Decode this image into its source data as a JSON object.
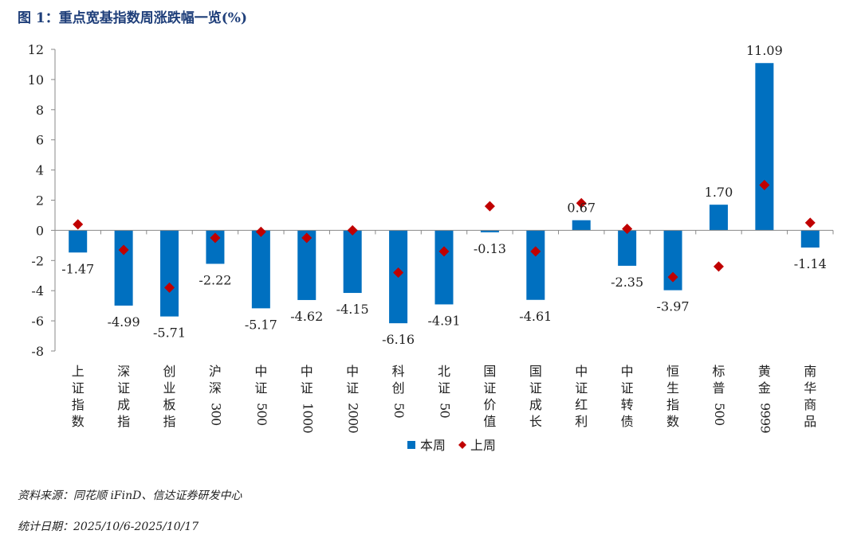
{
  "figure_title": "图 1：重点宽基指数周涨跌幅一览(%)",
  "source_note": "资料来源：同花顺 iFinD、信达证券研发中心",
  "date_note": "统计日期：2025/10/6-2025/10/17",
  "colors": {
    "bar": "#0070C0",
    "marker": "#C00000",
    "axis": "#888888",
    "title": "#1f3f7a"
  },
  "chart_data": {
    "type": "bar",
    "title": "重点宽基指数周涨跌幅一览(%)",
    "xlabel": "",
    "ylabel": "",
    "ylim": [
      -8,
      12
    ],
    "yticks": [
      "12",
      "10",
      "8",
      "6",
      "4",
      "2",
      "0",
      "-2",
      "-4",
      "-6",
      "-8"
    ],
    "categories": [
      "上证指数",
      "深证成指",
      "创业板指",
      "沪深300",
      "中证500",
      "中证1000",
      "中证2000",
      "科创50",
      "北证50",
      "国证价值",
      "国证成长",
      "中证红利",
      "中证转债",
      "恒生指数",
      "标普500",
      "黄金9999",
      "南华商品"
    ],
    "series": [
      {
        "name": "本周",
        "kind": "bar",
        "values": [
          -1.47,
          -4.99,
          -5.71,
          -2.22,
          -5.17,
          -4.62,
          -4.15,
          -6.16,
          -4.91,
          -0.13,
          -4.61,
          0.67,
          -2.35,
          -3.97,
          1.7,
          11.09,
          -1.14
        ],
        "labels": [
          "-1.47",
          "-4.99",
          "-5.71",
          "-2.22",
          "-5.17",
          "-4.62",
          "-4.15",
          "-6.16",
          "-4.91",
          "-0.13",
          "-4.61",
          "0.67",
          "-2.35",
          "-3.97",
          "1.70",
          "11.09",
          "-1.14"
        ]
      },
      {
        "name": "上周",
        "kind": "marker",
        "values": [
          0.4,
          -1.3,
          -3.8,
          -0.5,
          -0.1,
          -0.5,
          0.0,
          -2.8,
          -1.4,
          1.6,
          -1.4,
          1.8,
          0.1,
          -3.1,
          -2.4,
          3.0,
          0.5
        ]
      }
    ],
    "legend": [
      "本周",
      "上周"
    ],
    "legend_position": "bottom",
    "grid": false
  }
}
